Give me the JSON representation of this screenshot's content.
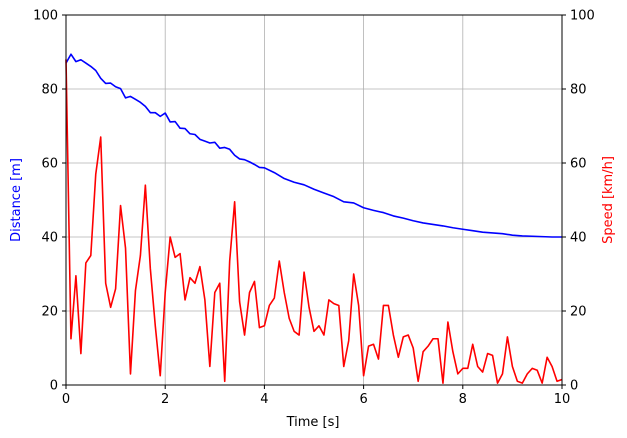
{
  "chart_data": {
    "type": "line",
    "title": "",
    "xlabel": "Time [s]",
    "ylabel_left": "Distance [m]",
    "ylabel_right": "Speed [km/h]",
    "xlim": [
      0,
      10
    ],
    "ylim_left": [
      0,
      100
    ],
    "ylim_right": [
      0,
      100
    ],
    "xticks": [
      0,
      2,
      4,
      6,
      8,
      10
    ],
    "yticks": [
      0,
      20,
      40,
      60,
      80,
      100
    ],
    "grid": true,
    "colors": {
      "distance": "#0000ff",
      "speed": "#ff0000",
      "grid": "#b0b0b0",
      "axes": "#000000"
    },
    "series": [
      {
        "name": "Distance",
        "axis": "left",
        "color": "#0000ff",
        "x": [
          0,
          0.1,
          0.2,
          0.3,
          0.4,
          0.5,
          0.6,
          0.7,
          0.8,
          0.9,
          1.0,
          1.1,
          1.2,
          1.3,
          1.4,
          1.5,
          1.6,
          1.7,
          1.8,
          1.9,
          2.0,
          2.1,
          2.2,
          2.3,
          2.4,
          2.5,
          2.6,
          2.7,
          2.8,
          2.9,
          3.0,
          3.1,
          3.2,
          3.3,
          3.4,
          3.5,
          3.6,
          3.7,
          3.8,
          3.9,
          4.0,
          4.2,
          4.4,
          4.6,
          4.8,
          5.0,
          5.2,
          5.4,
          5.6,
          5.8,
          6.0,
          6.2,
          6.4,
          6.6,
          6.8,
          7.0,
          7.2,
          7.4,
          7.6,
          7.8,
          8.0,
          8.2,
          8.4,
          8.6,
          8.8,
          9.0,
          9.2,
          9.4,
          9.6,
          9.8,
          10.0
        ],
        "y": [
          87.0,
          89.4,
          87.4,
          87.9,
          87.0,
          86.1,
          85.0,
          82.9,
          81.5,
          81.6,
          80.6,
          80.1,
          77.6,
          78.0,
          77.2,
          76.4,
          75.3,
          73.6,
          73.6,
          72.6,
          73.5,
          71.1,
          71.2,
          69.4,
          69.3,
          67.9,
          67.7,
          66.4,
          65.9,
          65.4,
          65.6,
          64.0,
          64.2,
          63.7,
          62.1,
          61.1,
          60.9,
          60.3,
          59.6,
          58.8,
          58.7,
          57.4,
          55.8,
          54.8,
          54.1,
          52.9,
          51.9,
          50.9,
          49.5,
          49.2,
          47.9,
          47.2,
          46.6,
          45.7,
          45.1,
          44.4,
          43.8,
          43.4,
          43.0,
          42.5,
          42.1,
          41.7,
          41.3,
          41.1,
          40.9,
          40.5,
          40.3,
          40.2,
          40.1,
          40.0,
          40.0
        ]
      },
      {
        "name": "Speed",
        "axis": "right",
        "color": "#ff0000",
        "x": [
          0,
          0.1,
          0.2,
          0.3,
          0.4,
          0.5,
          0.6,
          0.7,
          0.8,
          0.9,
          1.0,
          1.1,
          1.2,
          1.3,
          1.4,
          1.5,
          1.6,
          1.7,
          1.8,
          1.9,
          2.0,
          2.1,
          2.2,
          2.3,
          2.4,
          2.5,
          2.6,
          2.7,
          2.8,
          2.9,
          3.0,
          3.1,
          3.2,
          3.3,
          3.4,
          3.5,
          3.6,
          3.7,
          3.8,
          3.9,
          4.0,
          4.1,
          4.2,
          4.3,
          4.4,
          4.5,
          4.6,
          4.7,
          4.8,
          4.9,
          5.0,
          5.1,
          5.2,
          5.3,
          5.4,
          5.5,
          5.6,
          5.7,
          5.8,
          5.9,
          6.0,
          6.1,
          6.2,
          6.3,
          6.4,
          6.5,
          6.6,
          6.7,
          6.8,
          6.9,
          7.0,
          7.1,
          7.2,
          7.3,
          7.4,
          7.5,
          7.6,
          7.7,
          7.8,
          7.9,
          8.0,
          8.1,
          8.2,
          8.3,
          8.4,
          8.5,
          8.6,
          8.7,
          8.8,
          8.9,
          9.0,
          9.1,
          9.2,
          9.3,
          9.4,
          9.5,
          9.6,
          9.7,
          9.8,
          9.9,
          10.0
        ],
        "y": [
          88,
          12.5,
          29.5,
          8.5,
          33,
          35,
          57,
          67,
          27.5,
          21,
          26,
          48.5,
          37,
          3,
          25.5,
          35,
          54,
          31.5,
          16,
          2.5,
          25,
          40,
          34.5,
          35.5,
          23,
          29,
          27.5,
          32,
          23,
          5,
          25,
          27.5,
          1,
          33.5,
          49.5,
          22.5,
          13.5,
          25,
          28,
          15.5,
          16,
          21.5,
          23.5,
          33.5,
          25,
          18,
          14.5,
          13.5,
          30.5,
          21,
          14.5,
          16,
          13.5,
          23,
          22,
          21.5,
          5,
          12,
          30,
          21.5,
          2.5,
          10.5,
          11,
          7,
          21.5,
          21.5,
          13.5,
          7.5,
          13,
          13.5,
          10,
          1,
          9,
          10.5,
          12.5,
          12.5,
          0.5,
          17,
          9,
          3,
          4.5,
          4.5,
          11,
          5,
          3.5,
          8.5,
          8,
          0.5,
          3,
          13,
          5,
          1,
          0.5,
          3,
          4.5,
          4,
          0.5,
          7.5,
          5,
          1,
          1.5
        ]
      }
    ]
  }
}
